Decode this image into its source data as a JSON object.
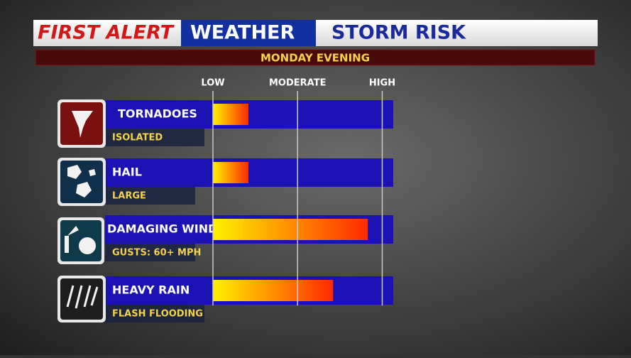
{
  "chart_data": {
    "type": "bar",
    "title_parts": [
      "FIRST ALERT",
      "WEATHER",
      "STORM RISK"
    ],
    "subtitle": "MONDAY EVENING",
    "categories": [
      "TORNADOES",
      "HAIL",
      "DAMAGING WINDS",
      "HEAVY RAIN"
    ],
    "details": [
      "ISOLATED",
      "LARGE",
      "GUSTS: 60+ MPH",
      "FLASH FLOODING"
    ],
    "values": [
      0.42,
      0.42,
      1.83,
      1.42
    ],
    "xlim": [
      0,
      2.13
    ],
    "xticks": [
      {
        "value": 0,
        "label": "LOW"
      },
      {
        "value": 1,
        "label": "MODERATE"
      },
      {
        "value": 2,
        "label": "HIGH"
      }
    ],
    "grid": true,
    "colors": [
      "#fff200",
      "#ff2a00"
    ],
    "track_color": "#1c12b4"
  }
}
